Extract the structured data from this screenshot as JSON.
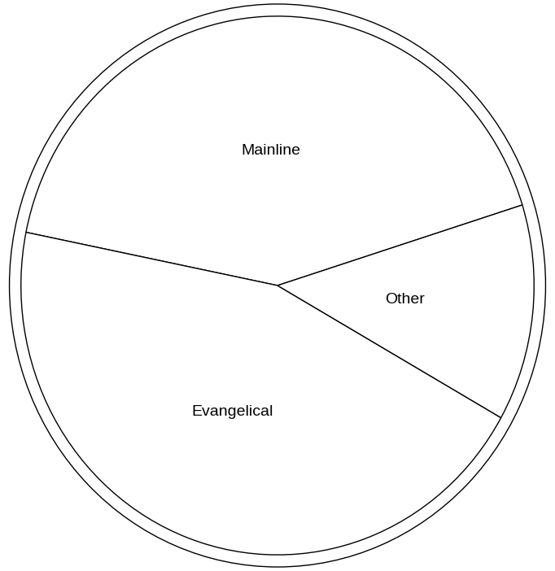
{
  "chart_data": {
    "type": "pie",
    "categories": [
      "Mainline",
      "Evangelical",
      "Other"
    ],
    "values": [
      42,
      45,
      13
    ],
    "color": "#ffffff"
  }
}
